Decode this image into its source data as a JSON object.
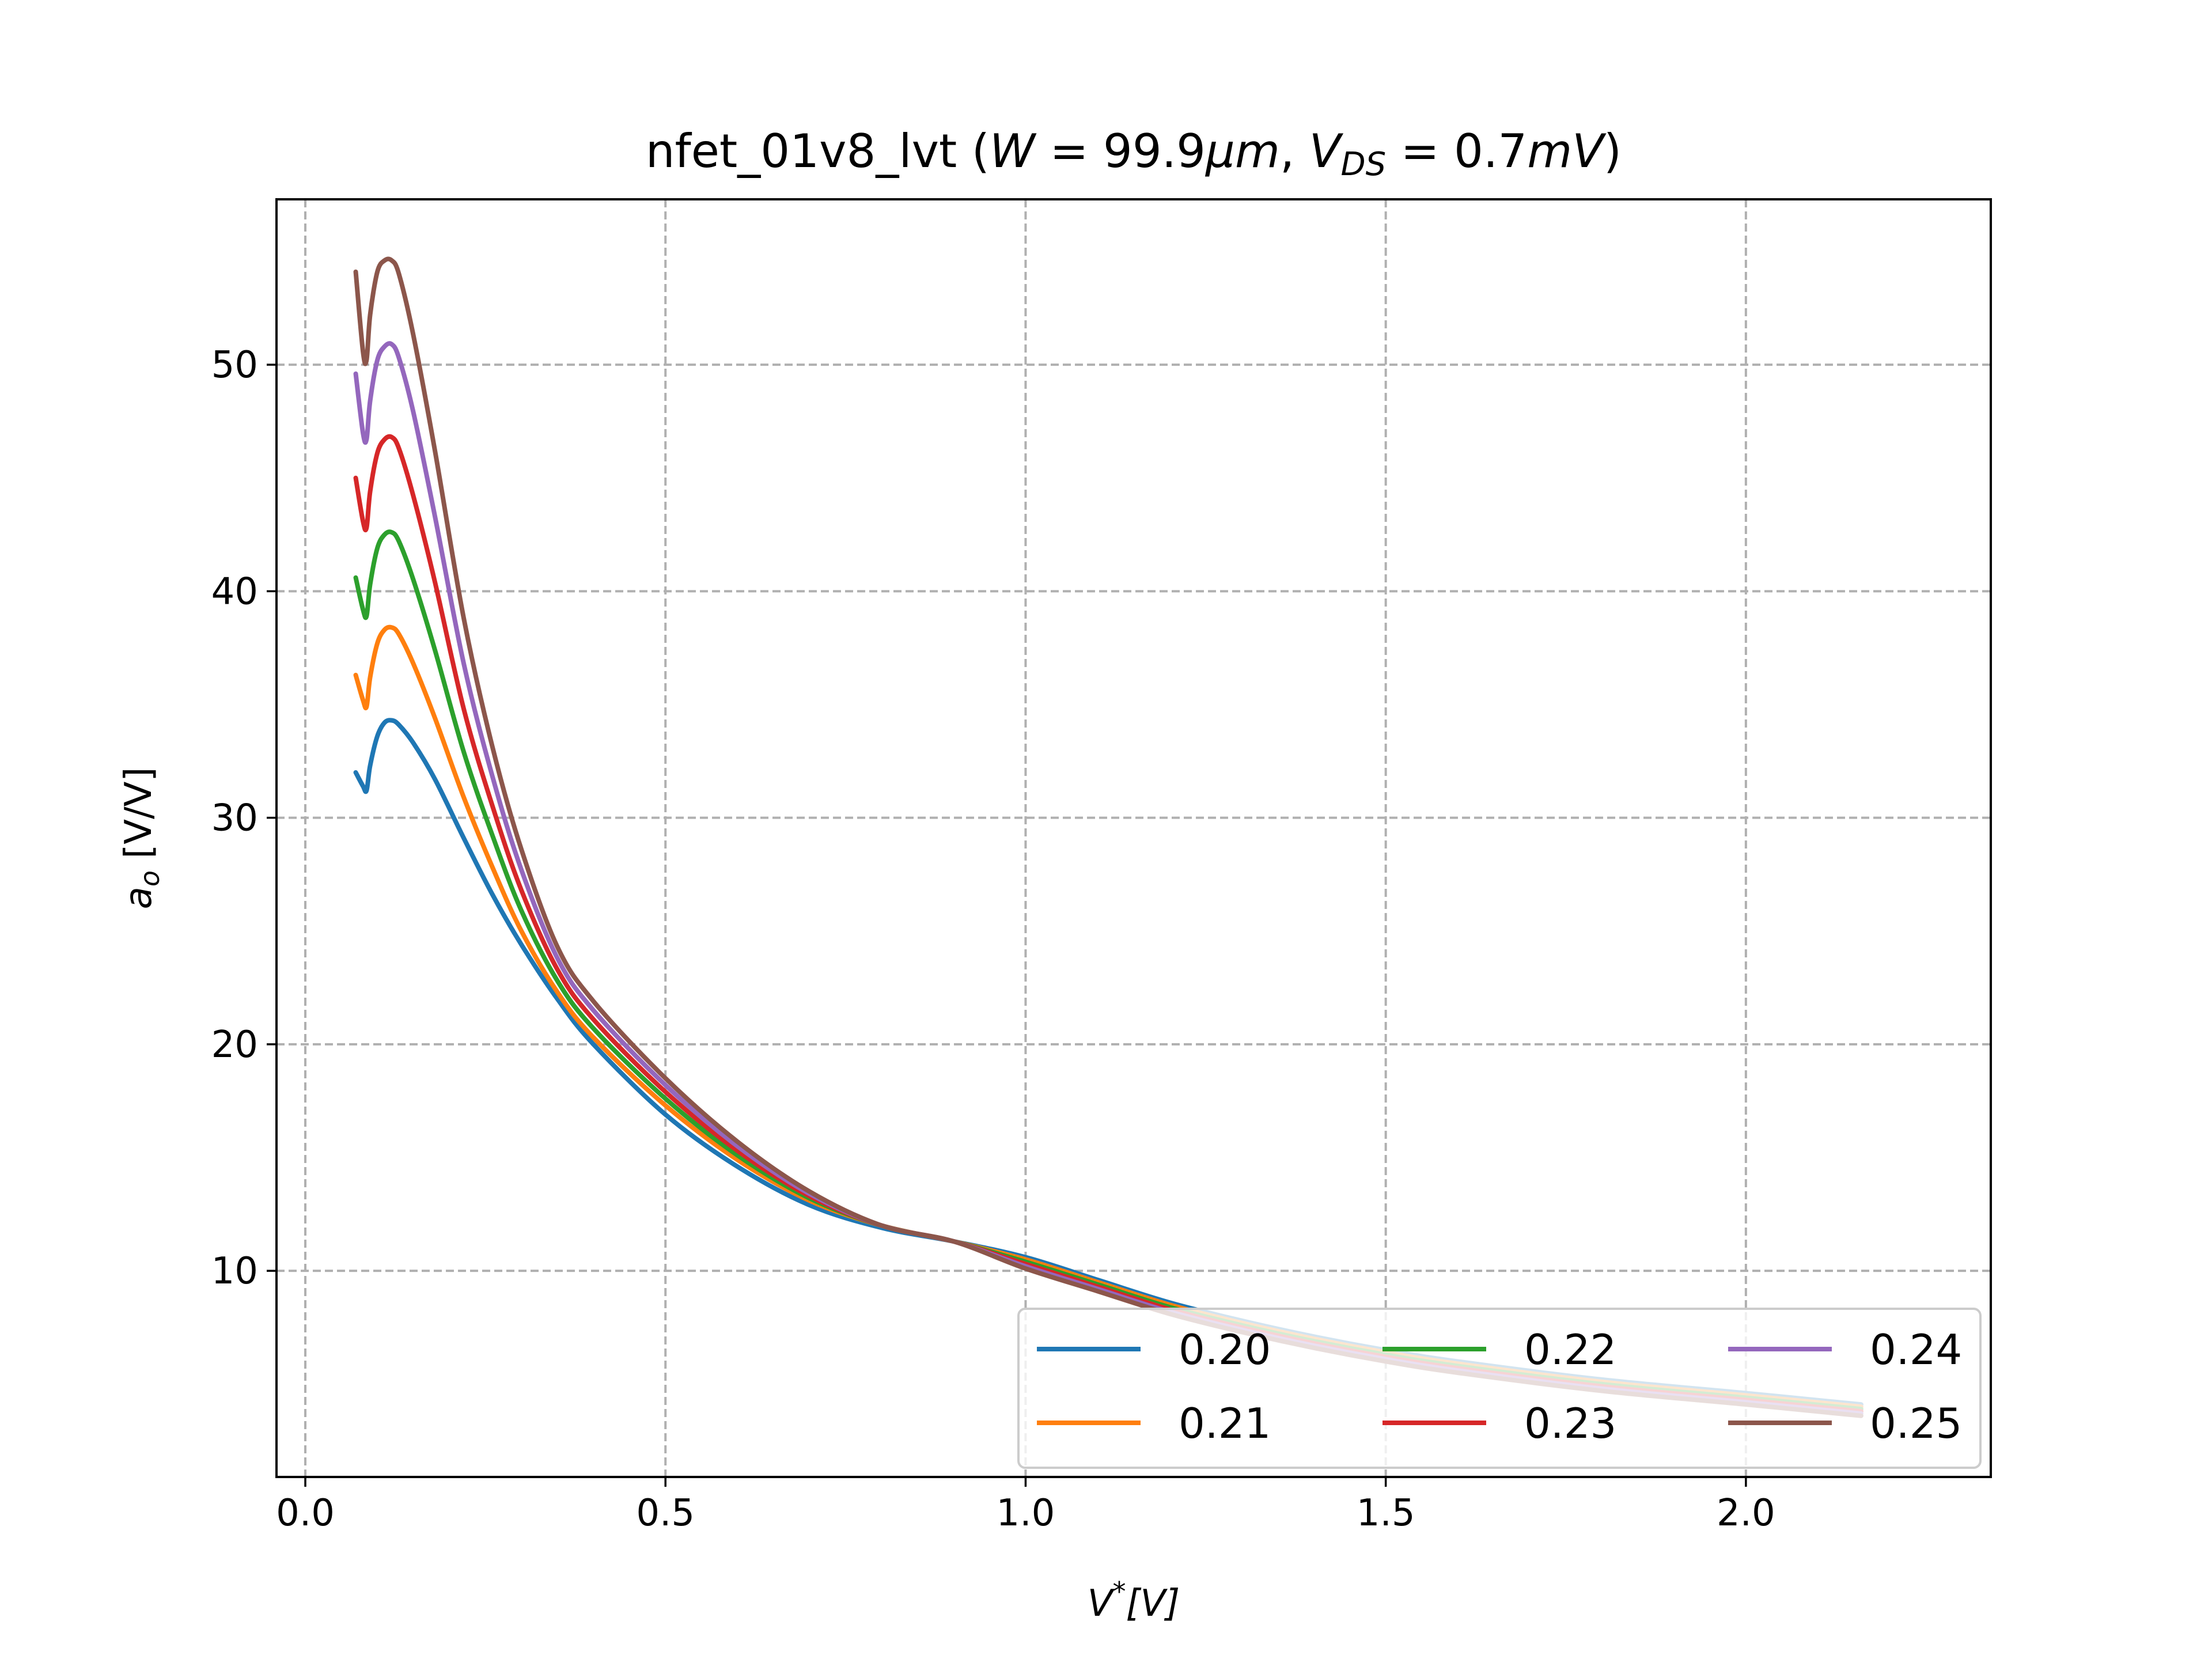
{
  "chart_data": {
    "type": "line",
    "title": "nfet_01v8_lvt (W = 99.9μm, V_DS = 0.7mV)",
    "title_parts": {
      "prefix": "nfet_01v8_lvt (",
      "w_var": "W",
      "eq1": " = 99.9",
      "w_unit": "μm",
      "comma": ", ",
      "v_var": "V",
      "v_sub": "DS",
      "eq2": " = 0.7",
      "v_unit": "mV",
      "suffix": ")"
    },
    "xlabel": "V*[V]",
    "xlabel_parts": {
      "var": "V",
      "sup": "*",
      "unit": "[V]"
    },
    "ylabel": "a_o [V/V]",
    "ylabel_parts": {
      "var": "a",
      "sub": "o",
      "unit": " [V/V]"
    },
    "xlim": [
      -0.04,
      2.34
    ],
    "ylim": [
      0.9,
      57.3
    ],
    "xticks": [
      0.0,
      0.5,
      1.0,
      1.5,
      2.0
    ],
    "xtick_labels": [
      "0.0",
      "0.5",
      "1.0",
      "1.5",
      "2.0"
    ],
    "yticks": [
      10,
      20,
      30,
      40,
      50
    ],
    "ytick_labels": [
      "10",
      "20",
      "30",
      "40",
      "50"
    ],
    "grid": true,
    "legend_placement": "lower-right",
    "legend_columns": 3,
    "series": [
      {
        "name": "0.20",
        "color": "#1f77b4",
        "x": [
          0.07,
          0.08,
          0.085,
          0.09,
          0.1,
          0.11,
          0.12,
          0.13,
          0.15,
          0.18,
          0.22,
          0.26,
          0.3,
          0.35,
          0.4,
          0.5,
          0.6,
          0.7,
          0.8,
          0.9,
          1.0,
          1.1,
          1.2,
          1.3,
          1.4,
          1.5,
          1.6,
          1.8,
          2.0,
          2.16
        ],
        "y": [
          32.0,
          31.4,
          31.2,
          32.3,
          33.6,
          34.2,
          34.3,
          34.1,
          33.3,
          31.7,
          29.1,
          26.6,
          24.4,
          22.0,
          20.0,
          16.9,
          14.6,
          12.9,
          11.9,
          11.3,
          10.6,
          9.6,
          8.6,
          7.8,
          7.1,
          6.5,
          6.0,
          5.2,
          4.6,
          4.1
        ]
      },
      {
        "name": "0.21",
        "color": "#ff7f0e",
        "x": [
          0.07,
          0.08,
          0.085,
          0.09,
          0.1,
          0.11,
          0.12,
          0.13,
          0.15,
          0.18,
          0.22,
          0.26,
          0.3,
          0.35,
          0.4,
          0.5,
          0.6,
          0.7,
          0.8,
          0.9,
          1.0,
          1.1,
          1.2,
          1.3,
          1.4,
          1.5,
          1.6,
          1.8,
          2.0,
          2.16
        ],
        "y": [
          36.3,
          35.2,
          34.9,
          36.2,
          37.7,
          38.3,
          38.4,
          38.1,
          36.8,
          34.4,
          30.9,
          27.8,
          25.0,
          22.3,
          20.3,
          17.3,
          14.9,
          13.1,
          12.0,
          11.3,
          10.5,
          9.5,
          8.5,
          7.7,
          7.0,
          6.4,
          5.9,
          5.1,
          4.5,
          4.0
        ]
      },
      {
        "name": "0.22",
        "color": "#2ca02c",
        "x": [
          0.07,
          0.08,
          0.085,
          0.09,
          0.1,
          0.11,
          0.12,
          0.13,
          0.15,
          0.18,
          0.22,
          0.26,
          0.3,
          0.35,
          0.4,
          0.5,
          0.6,
          0.7,
          0.8,
          0.9,
          1.0,
          1.1,
          1.2,
          1.3,
          1.4,
          1.5,
          1.6,
          1.8,
          2.0,
          2.16
        ],
        "y": [
          40.6,
          39.2,
          38.9,
          40.3,
          41.9,
          42.5,
          42.6,
          42.2,
          40.5,
          37.4,
          32.9,
          29.2,
          25.9,
          22.8,
          20.7,
          17.6,
          15.1,
          13.2,
          12.0,
          11.3,
          10.4,
          9.4,
          8.4,
          7.6,
          6.9,
          6.3,
          5.8,
          5.0,
          4.4,
          3.9
        ]
      },
      {
        "name": "0.23",
        "color": "#d62728",
        "x": [
          0.07,
          0.08,
          0.085,
          0.09,
          0.1,
          0.11,
          0.12,
          0.13,
          0.15,
          0.18,
          0.22,
          0.26,
          0.3,
          0.35,
          0.4,
          0.5,
          0.6,
          0.7,
          0.8,
          0.9,
          1.0,
          1.1,
          1.2,
          1.3,
          1.4,
          1.5,
          1.6,
          1.8,
          2.0,
          2.16
        ],
        "y": [
          45.0,
          43.1,
          42.8,
          44.4,
          46.1,
          46.7,
          46.8,
          46.3,
          44.2,
          40.4,
          34.8,
          30.5,
          26.8,
          23.3,
          21.1,
          17.9,
          15.3,
          13.3,
          12.0,
          11.3,
          10.3,
          9.3,
          8.3,
          7.5,
          6.8,
          6.2,
          5.7,
          4.9,
          4.3,
          3.8
        ]
      },
      {
        "name": "0.24",
        "color": "#9467bd",
        "x": [
          0.07,
          0.08,
          0.085,
          0.09,
          0.1,
          0.11,
          0.12,
          0.13,
          0.15,
          0.18,
          0.22,
          0.26,
          0.3,
          0.35,
          0.4,
          0.5,
          0.6,
          0.7,
          0.8,
          0.9,
          1.0,
          1.1,
          1.2,
          1.3,
          1.4,
          1.5,
          1.6,
          1.8,
          2.0,
          2.16
        ],
        "y": [
          49.6,
          47.0,
          46.7,
          48.4,
          50.2,
          50.8,
          50.9,
          50.3,
          47.9,
          43.3,
          36.8,
          31.8,
          27.7,
          23.8,
          21.5,
          18.2,
          15.5,
          13.4,
          12.0,
          11.3,
          10.2,
          9.2,
          8.2,
          7.4,
          6.7,
          6.1,
          5.6,
          4.8,
          4.2,
          3.7
        ]
      },
      {
        "name": "0.25",
        "color": "#8c564b",
        "x": [
          0.07,
          0.08,
          0.085,
          0.09,
          0.1,
          0.11,
          0.12,
          0.13,
          0.15,
          0.18,
          0.22,
          0.26,
          0.3,
          0.35,
          0.4,
          0.5,
          0.6,
          0.7,
          0.8,
          0.9,
          1.0,
          1.1,
          1.2,
          1.3,
          1.4,
          1.5,
          1.6,
          1.8,
          2.0,
          2.16
        ],
        "y": [
          54.1,
          50.6,
          50.2,
          52.2,
          54.1,
          54.6,
          54.6,
          54.0,
          51.3,
          46.2,
          38.8,
          33.1,
          28.6,
          24.3,
          21.9,
          18.5,
          15.7,
          13.5,
          12.0,
          11.3,
          10.1,
          9.1,
          8.1,
          7.3,
          6.6,
          6.0,
          5.5,
          4.7,
          4.1,
          3.6
        ]
      }
    ]
  }
}
